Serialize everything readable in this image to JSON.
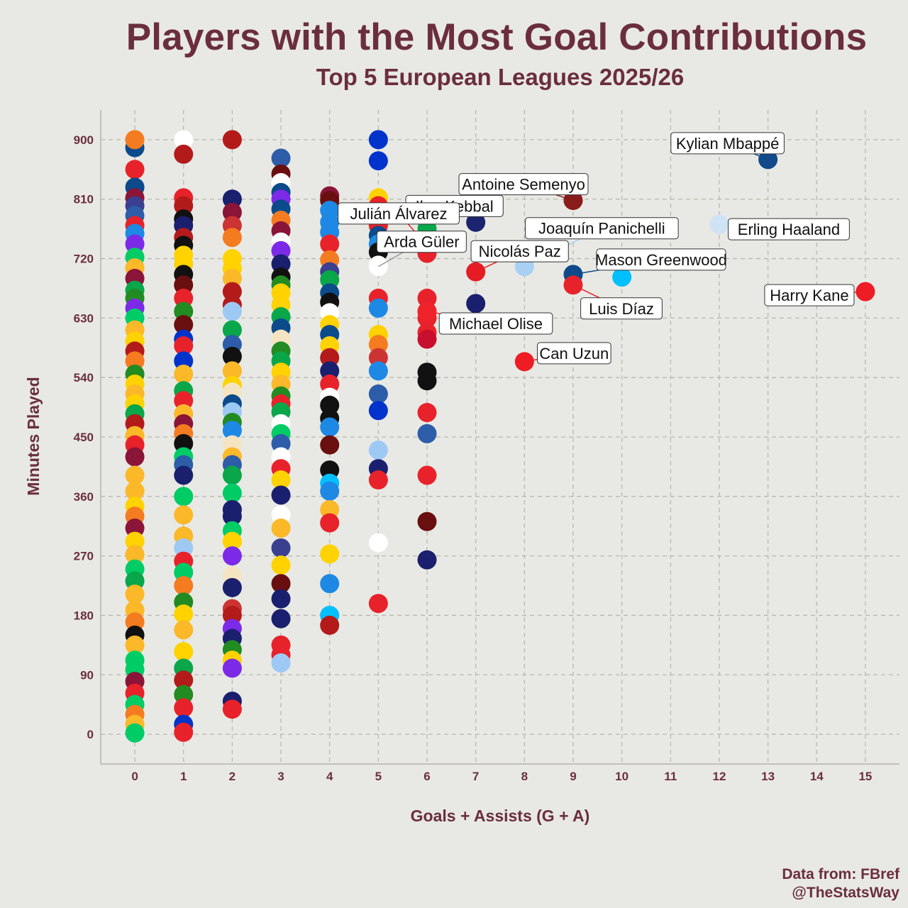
{
  "chart_data": {
    "type": "scatter",
    "title": "Players with the Most Goal Contributions",
    "subtitle": "Top 5 European Leagues 2025/26",
    "xlabel": "Goals + Assists (G + A)",
    "ylabel": "Minutes Played",
    "xlim": [
      -0.7,
      15.7
    ],
    "ylim": [
      -45,
      945
    ],
    "xticks": [
      0,
      1,
      2,
      3,
      4,
      5,
      6,
      7,
      8,
      9,
      10,
      11,
      12,
      13,
      14,
      15
    ],
    "yticks": [
      0,
      90,
      180,
      270,
      360,
      450,
      540,
      630,
      720,
      810,
      900
    ],
    "grid": true,
    "caption": [
      "Data from: FBref",
      "@TheStatsWay"
    ],
    "palette": [
      "#e8222b",
      "#0b4a8b",
      "#1a1f6e",
      "#ffd200",
      "#f47b20",
      "#0aa64a",
      "#b31b1b",
      "#8a1538",
      "#111111",
      "#ffffff",
      "#7c2ae8",
      "#fbb829",
      "#1e88e5",
      "#00bfff",
      "#9ec9f5",
      "#c8102e",
      "#2d5da8",
      "#00cc66",
      "#f4e4c1",
      "#cc3333",
      "#0033cc",
      "#6a0f0f",
      "#3a3f8f",
      "#ff3344",
      "#228b22"
    ],
    "labeled_points": [
      {
        "name": "Kylian Mbappé",
        "x": 13,
        "y": 870,
        "color": "#124a8a"
      },
      {
        "name": "Antoine Semenyo",
        "x": 9,
        "y": 808,
        "color": "#8a1b1b"
      },
      {
        "name": "Ilan Kebbal",
        "x": 7,
        "y": 775,
        "color": "#1c2470"
      },
      {
        "name": "Erling Haaland",
        "x": 12,
        "y": 772,
        "color": "#cfe3f5"
      },
      {
        "name": "Joaquín Panichelli",
        "x": 8,
        "y": 708,
        "color": "#a8d0f3"
      },
      {
        "name": "Julián Álvarez",
        "x": 6,
        "y": 740,
        "color": "#e82127"
      },
      {
        "name": "Mason Greenwood",
        "x": 9,
        "y": 696,
        "color": "#0f4a8a"
      },
      {
        "name": "Arda Güler",
        "x": 5,
        "y": 708,
        "color": "#ffffff"
      },
      {
        "name": "Nicolás Paz",
        "x": 7,
        "y": 700,
        "color": "#e51c24"
      },
      {
        "name": "Harry Kane",
        "x": 15,
        "y": 670,
        "color": "#ee1c25"
      },
      {
        "name": "Luis Díaz",
        "x": 9,
        "y": 680,
        "color": "#e8222b"
      },
      {
        "name": "Michael Olise",
        "x": 6,
        "y": 640,
        "color": "#f0232b"
      },
      {
        "name": "Can Uzun",
        "x": 8,
        "y": 564,
        "color": "#ee1c25"
      }
    ],
    "points": [
      [
        10,
        692,
        13
      ],
      [
        7,
        652,
        2
      ],
      [
        6,
        765,
        5
      ],
      [
        6,
        728,
        0
      ],
      [
        6,
        660,
        0
      ],
      [
        6,
        640,
        0
      ],
      [
        6,
        630,
        0
      ],
      [
        6,
        608,
        0
      ],
      [
        6,
        598,
        15
      ],
      [
        6,
        548,
        8
      ],
      [
        6,
        535,
        8
      ],
      [
        6,
        487,
        0
      ],
      [
        6,
        455,
        16
      ],
      [
        6,
        392,
        0
      ],
      [
        6,
        322,
        21
      ],
      [
        6,
        264,
        2
      ],
      [
        5,
        900,
        20
      ],
      [
        5,
        868,
        20
      ],
      [
        5,
        812,
        3
      ],
      [
        5,
        800,
        0
      ],
      [
        5,
        785,
        16
      ],
      [
        5,
        770,
        0
      ],
      [
        5,
        755,
        1
      ],
      [
        5,
        742,
        12
      ],
      [
        5,
        730,
        8
      ],
      [
        5,
        710,
        9
      ],
      [
        5,
        660,
        0
      ],
      [
        5,
        645,
        12
      ],
      [
        5,
        605,
        3
      ],
      [
        5,
        590,
        4
      ],
      [
        5,
        570,
        19
      ],
      [
        5,
        550,
        12
      ],
      [
        5,
        515,
        16
      ],
      [
        5,
        490,
        20
      ],
      [
        5,
        430,
        14
      ],
      [
        5,
        402,
        2
      ],
      [
        5,
        385,
        0
      ],
      [
        5,
        290,
        9
      ],
      [
        5,
        198,
        0
      ],
      [
        4,
        815,
        7
      ],
      [
        4,
        808,
        21
      ],
      [
        4,
        793,
        12
      ],
      [
        4,
        775,
        12
      ],
      [
        4,
        760,
        12
      ],
      [
        4,
        742,
        0
      ],
      [
        4,
        718,
        4
      ],
      [
        4,
        700,
        22
      ],
      [
        4,
        688,
        5
      ],
      [
        4,
        668,
        1
      ],
      [
        4,
        654,
        8
      ],
      [
        4,
        638,
        9
      ],
      [
        4,
        620,
        3
      ],
      [
        4,
        605,
        1
      ],
      [
        4,
        588,
        3
      ],
      [
        4,
        570,
        6
      ],
      [
        4,
        550,
        2
      ],
      [
        4,
        530,
        0
      ],
      [
        4,
        510,
        9
      ],
      [
        4,
        498,
        8
      ],
      [
        4,
        478,
        8
      ],
      [
        4,
        465,
        12
      ],
      [
        4,
        438,
        21
      ],
      [
        4,
        400,
        8
      ],
      [
        4,
        380,
        13
      ],
      [
        4,
        368,
        12
      ],
      [
        4,
        340,
        11
      ],
      [
        4,
        320,
        0
      ],
      [
        4,
        273,
        3
      ],
      [
        4,
        228,
        12
      ],
      [
        4,
        180,
        13
      ],
      [
        4,
        165,
        6
      ],
      [
        3,
        872,
        16
      ],
      [
        3,
        848,
        21
      ],
      [
        3,
        835,
        9
      ],
      [
        3,
        820,
        1
      ],
      [
        3,
        810,
        10
      ],
      [
        3,
        795,
        1
      ],
      [
        3,
        778,
        4
      ],
      [
        3,
        762,
        7
      ],
      [
        3,
        745,
        9
      ],
      [
        3,
        732,
        10
      ],
      [
        3,
        712,
        2
      ],
      [
        3,
        692,
        8
      ],
      [
        3,
        680,
        24
      ],
      [
        3,
        668,
        3
      ],
      [
        3,
        650,
        3
      ],
      [
        3,
        632,
        5
      ],
      [
        3,
        615,
        1
      ],
      [
        3,
        598,
        18
      ],
      [
        3,
        580,
        24
      ],
      [
        3,
        565,
        5
      ],
      [
        3,
        548,
        3
      ],
      [
        3,
        530,
        11
      ],
      [
        3,
        512,
        24
      ],
      [
        3,
        500,
        0
      ],
      [
        3,
        488,
        5
      ],
      [
        3,
        470,
        9
      ],
      [
        3,
        455,
        17
      ],
      [
        3,
        440,
        16
      ],
      [
        3,
        420,
        9
      ],
      [
        3,
        402,
        0
      ],
      [
        3,
        385,
        3
      ],
      [
        3,
        362,
        2
      ],
      [
        3,
        332,
        9
      ],
      [
        3,
        312,
        11
      ],
      [
        3,
        282,
        22
      ],
      [
        3,
        256,
        3
      ],
      [
        3,
        228,
        21
      ],
      [
        3,
        205,
        2
      ],
      [
        3,
        175,
        2
      ],
      [
        3,
        135,
        0
      ],
      [
        3,
        120,
        0
      ],
      [
        3,
        108,
        14
      ],
      [
        2,
        900,
        6
      ],
      [
        2,
        810,
        2
      ],
      [
        2,
        790,
        7
      ],
      [
        2,
        770,
        19
      ],
      [
        2,
        752,
        4
      ],
      [
        2,
        720,
        3
      ],
      [
        2,
        705,
        3
      ],
      [
        2,
        690,
        11
      ],
      [
        2,
        670,
        6
      ],
      [
        2,
        650,
        6
      ],
      [
        2,
        640,
        14
      ],
      [
        2,
        612,
        5
      ],
      [
        2,
        590,
        16
      ],
      [
        2,
        572,
        8
      ],
      [
        2,
        550,
        11
      ],
      [
        2,
        528,
        3
      ],
      [
        2,
        518,
        18
      ],
      [
        2,
        500,
        1
      ],
      [
        2,
        488,
        14
      ],
      [
        2,
        472,
        24
      ],
      [
        2,
        460,
        12
      ],
      [
        2,
        438,
        18
      ],
      [
        2,
        420,
        11
      ],
      [
        2,
        408,
        16
      ],
      [
        2,
        392,
        5
      ],
      [
        2,
        365,
        17
      ],
      [
        2,
        340,
        2
      ],
      [
        2,
        330,
        2
      ],
      [
        2,
        308,
        17
      ],
      [
        2,
        292,
        3
      ],
      [
        2,
        270,
        10
      ],
      [
        2,
        240,
        18
      ],
      [
        2,
        222,
        2
      ],
      [
        2,
        190,
        19
      ],
      [
        2,
        180,
        6
      ],
      [
        2,
        160,
        10
      ],
      [
        2,
        145,
        2
      ],
      [
        2,
        128,
        24
      ],
      [
        2,
        112,
        3
      ],
      [
        2,
        100,
        10
      ],
      [
        2,
        50,
        2
      ],
      [
        2,
        38,
        0
      ],
      [
        1,
        900,
        9
      ],
      [
        1,
        878,
        6
      ],
      [
        1,
        812,
        0
      ],
      [
        1,
        800,
        6
      ],
      [
        1,
        780,
        8
      ],
      [
        1,
        770,
        2
      ],
      [
        1,
        752,
        6
      ],
      [
        1,
        740,
        8
      ],
      [
        1,
        725,
        3
      ],
      [
        1,
        712,
        3
      ],
      [
        1,
        696,
        8
      ],
      [
        1,
        680,
        21
      ],
      [
        1,
        660,
        0
      ],
      [
        1,
        640,
        24
      ],
      [
        1,
        620,
        21
      ],
      [
        1,
        598,
        20
      ],
      [
        1,
        588,
        0
      ],
      [
        1,
        565,
        20
      ],
      [
        1,
        545,
        11
      ],
      [
        1,
        520,
        5
      ],
      [
        1,
        505,
        0
      ],
      [
        1,
        485,
        11
      ],
      [
        1,
        470,
        7
      ],
      [
        1,
        455,
        4
      ],
      [
        1,
        440,
        8
      ],
      [
        1,
        420,
        17
      ],
      [
        1,
        408,
        16
      ],
      [
        1,
        392,
        2
      ],
      [
        1,
        360,
        17
      ],
      [
        1,
        332,
        11
      ],
      [
        1,
        300,
        11
      ],
      [
        1,
        282,
        14
      ],
      [
        1,
        262,
        0
      ],
      [
        1,
        245,
        17
      ],
      [
        1,
        225,
        4
      ],
      [
        1,
        200,
        24
      ],
      [
        1,
        182,
        3
      ],
      [
        1,
        158,
        11
      ],
      [
        1,
        125,
        3
      ],
      [
        1,
        100,
        5
      ],
      [
        1,
        82,
        6
      ],
      [
        1,
        60,
        24
      ],
      [
        1,
        40,
        0
      ],
      [
        1,
        15,
        20
      ],
      [
        1,
        3,
        0
      ],
      [
        0,
        888,
        1
      ],
      [
        0,
        900,
        4
      ],
      [
        0,
        855,
        0
      ],
      [
        0,
        828,
        1
      ],
      [
        0,
        812,
        7
      ],
      [
        0,
        800,
        22
      ],
      [
        0,
        785,
        16
      ],
      [
        0,
        770,
        0
      ],
      [
        0,
        758,
        12
      ],
      [
        0,
        742,
        10
      ],
      [
        0,
        722,
        17
      ],
      [
        0,
        706,
        11
      ],
      [
        0,
        690,
        7
      ],
      [
        0,
        672,
        5
      ],
      [
        0,
        660,
        24
      ],
      [
        0,
        645,
        10
      ],
      [
        0,
        630,
        17
      ],
      [
        0,
        612,
        11
      ],
      [
        0,
        595,
        3
      ],
      [
        0,
        580,
        6
      ],
      [
        0,
        565,
        4
      ],
      [
        0,
        545,
        24
      ],
      [
        0,
        530,
        3
      ],
      [
        0,
        515,
        11
      ],
      [
        0,
        500,
        3
      ],
      [
        0,
        485,
        5
      ],
      [
        0,
        470,
        6
      ],
      [
        0,
        452,
        11
      ],
      [
        0,
        438,
        0
      ],
      [
        0,
        420,
        7
      ],
      [
        0,
        392,
        11
      ],
      [
        0,
        368,
        11
      ],
      [
        0,
        345,
        3
      ],
      [
        0,
        330,
        4
      ],
      [
        0,
        312,
        7
      ],
      [
        0,
        292,
        3
      ],
      [
        0,
        272,
        11
      ],
      [
        0,
        250,
        17
      ],
      [
        0,
        232,
        5
      ],
      [
        0,
        212,
        11
      ],
      [
        0,
        188,
        11
      ],
      [
        0,
        170,
        4
      ],
      [
        0,
        150,
        8
      ],
      [
        0,
        135,
        11
      ],
      [
        0,
        112,
        17
      ],
      [
        0,
        98,
        17
      ],
      [
        0,
        80,
        7
      ],
      [
        0,
        62,
        0
      ],
      [
        0,
        45,
        17
      ],
      [
        0,
        30,
        4
      ],
      [
        0,
        15,
        11
      ],
      [
        0,
        2,
        17
      ]
    ]
  }
}
